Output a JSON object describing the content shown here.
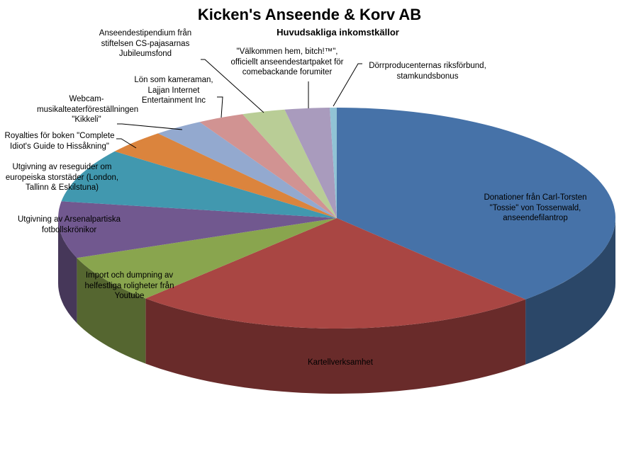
{
  "chart_data": {
    "type": "pie",
    "style": "3d-exploded-none",
    "title": "Kicken's Anseende & Korv AB",
    "subtitle": "Huvudsakliga inkomstkällor",
    "legend": "none (data labels with leader lines)",
    "slices": [
      {
        "label": "Donationer från Carl-Torsten \"Tossie\" von Tossenwald, anseendefilantrop",
        "value": 38.2,
        "color": "#4672A8"
      },
      {
        "label": "Kartellverksamhet",
        "value": 23.9,
        "color": "#A94643"
      },
      {
        "label": "Import och dumpning av helfestliga roligheter från Youtube",
        "value": 7.1,
        "color": "#89A54E"
      },
      {
        "label": "Utgivning av Arsenalpartiska fotbollskrönikor",
        "value": 8.3,
        "color": "#71588F"
      },
      {
        "label": "Utgivning av reseguider om europeiska storstäder (London, Tallinn & Eskilstuna)",
        "value": 7.9,
        "color": "#4198AF"
      },
      {
        "label": "Royalties för boken \"Complete Idiot's Guide to Hissåkning\"",
        "value": 3.6,
        "color": "#DB843D"
      },
      {
        "label": "Webcam-musikalteaterföreställningen \"Kikkeli\"",
        "value": 2.9,
        "color": "#93A9CF"
      },
      {
        "label": "Lön som kameraman, Lajjan Internet Entertainment Inc",
        "value": 2.7,
        "color": "#D19392"
      },
      {
        "label": "\"Välkommen hem, bitch!™\", officiellt anseendestartpaket för comebackande forumiter",
        "value": 2.5,
        "color": "#B9CD96"
      },
      {
        "label": "Anseendestipendium från stiftelsen CS-pajasarnas Jubileumsfond",
        "value": 2.6,
        "color": "#A99BBD"
      },
      {
        "label": "Dörrproducenternas riksförbund, stamkundsbonus",
        "value": 0.4,
        "color": "#91C3D5"
      }
    ]
  },
  "labels": {
    "donationer": "Donationer från Carl-Torsten\n\"Tossie\" von Tossenwald,\nanseendefilantrop",
    "kartell": "Kartellverksamhet",
    "import": "Import och dumpning av\nhelfestliga roligheter från\nYoutube",
    "arsenal": "Utgivning av Arsenalpartiska\nfotbollskrönikor",
    "reseguider": "Utgivning av reseguider om\neuropeiska storstäder (London,\nTallinn & Eskilstuna)",
    "royalties": "Royalties för boken \"Complete\nIdiot's Guide to Hissåkning\"",
    "webcam": "Webcam-\nmusikalteaterföreställningen\n\"Kikkeli\"",
    "lon": "Lön som kameraman,\nLajjan Internet\nEntertainment Inc",
    "valkommen": "\"Välkommen hem, bitch!™\",\nofficiellt anseendestartpaket för\ncomebackande forumiter",
    "stipendium": "Anseendestipendium från\nstiftelsen CS-pajasarnas\nJubileumsfond",
    "dorr": "Dörrproducenternas riksförbund,\nstamkundsbonus"
  }
}
